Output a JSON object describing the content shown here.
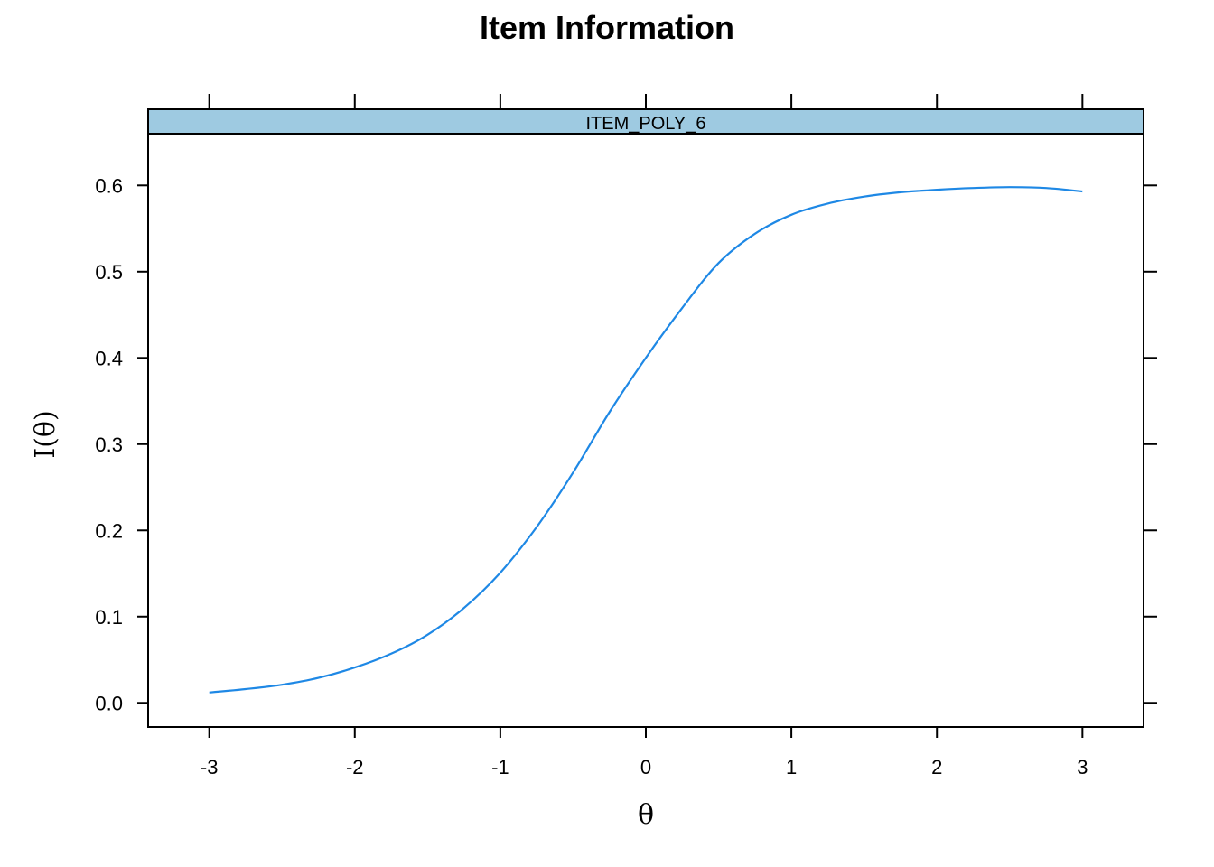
{
  "chart_data": {
    "type": "line",
    "title": "Item Information",
    "panel_label": "ITEM_POLY_6",
    "xlabel": "θ",
    "ylabel": "I(θ)",
    "xlim": [
      -3.42,
      3.42
    ],
    "ylim": [
      -0.028,
      0.66
    ],
    "x_ticks": [
      -3,
      -2,
      -1,
      0,
      1,
      2,
      3
    ],
    "x_tick_labels": [
      "-3",
      "-2",
      "-1",
      "0",
      "1",
      "2",
      "3"
    ],
    "y_ticks": [
      0.0,
      0.1,
      0.2,
      0.3,
      0.4,
      0.5,
      0.6
    ],
    "y_tick_labels": [
      "0.0",
      "0.1",
      "0.2",
      "0.3",
      "0.4",
      "0.5",
      "0.6"
    ],
    "grid": false,
    "series": [
      {
        "color": "#1E88E5",
        "x": [
          -3.0,
          -2.75,
          -2.5,
          -2.25,
          -2.0,
          -1.75,
          -1.5,
          -1.25,
          -1.0,
          -0.75,
          -0.5,
          -0.25,
          0.0,
          0.25,
          0.5,
          0.75,
          1.0,
          1.25,
          1.5,
          1.75,
          2.0,
          2.25,
          2.5,
          2.75,
          3.0
        ],
        "y": [
          0.012,
          0.016,
          0.021,
          0.029,
          0.041,
          0.057,
          0.079,
          0.11,
          0.151,
          0.204,
          0.267,
          0.337,
          0.4,
          0.458,
          0.51,
          0.544,
          0.566,
          0.579,
          0.587,
          0.592,
          0.595,
          0.597,
          0.598,
          0.597,
          0.593
        ]
      }
    ],
    "colors": {
      "strip_fill": "#9ECAE1",
      "frame": "#000000"
    }
  }
}
